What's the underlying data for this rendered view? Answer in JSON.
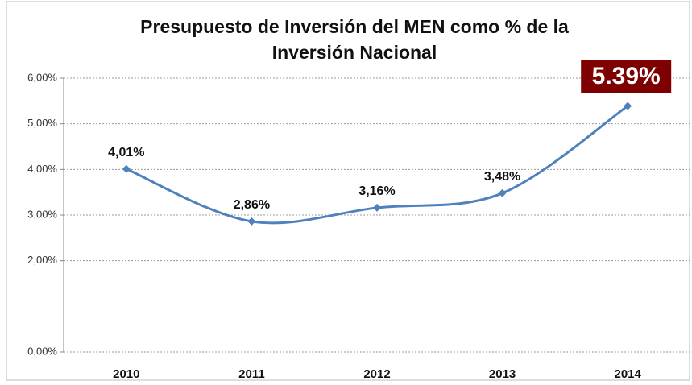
{
  "chart_data": {
    "type": "line",
    "title": [
      "Presupuesto de Inversión del MEN como % de la",
      "Inversión Nacional"
    ],
    "categories": [
      "2010",
      "2011",
      "2012",
      "2013",
      "2014"
    ],
    "series": [
      {
        "name": "Presupuesto de Inversión del MEN",
        "color": "#4f81bd",
        "values": [
          4.01,
          2.86,
          3.16,
          3.48,
          5.39
        ],
        "value_labels": [
          "4,01%",
          "2,86%",
          "3,16%",
          "3,48%",
          "5.39%"
        ]
      }
    ],
    "ylim": [
      0,
      6
    ],
    "yticks": [
      {
        "value": 0,
        "label": "0,00%"
      },
      {
        "value": 2,
        "label": "2,00%"
      },
      {
        "value": 3,
        "label": "3,00%"
      },
      {
        "value": 4,
        "label": "4,00%"
      },
      {
        "value": 5,
        "label": "5,00%"
      },
      {
        "value": 6,
        "label": "6,00%"
      }
    ],
    "grid": true
  }
}
